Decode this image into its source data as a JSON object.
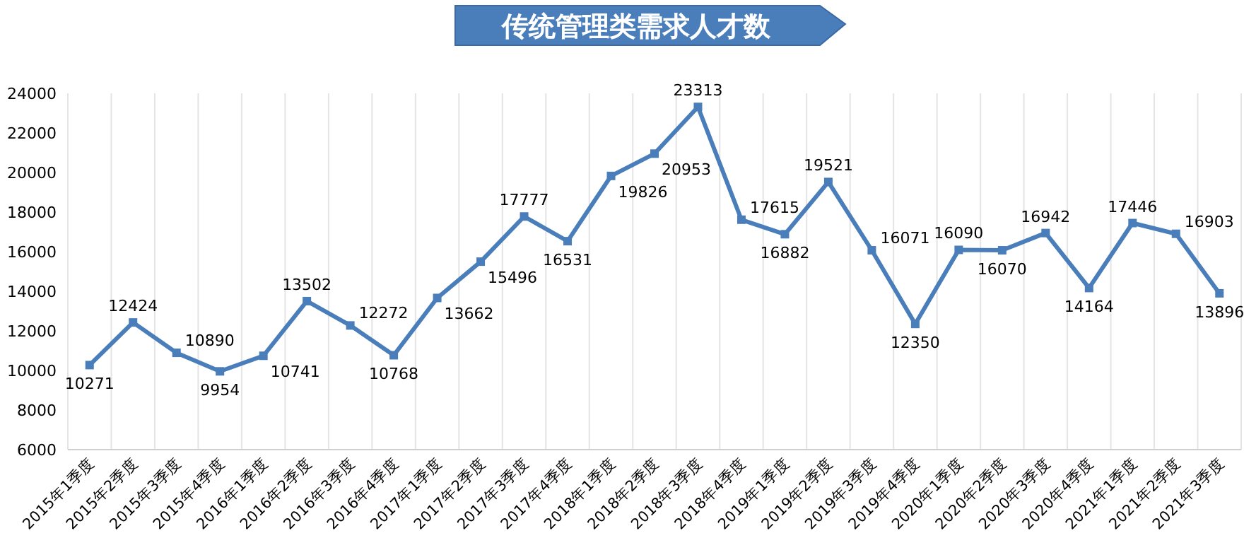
{
  "chart_data": {
    "type": "line",
    "title": "传统管理类需求人才数",
    "categories": [
      "2015年1季度",
      "2015年2季度",
      "2015年3季度",
      "2015年4季度",
      "2016年1季度",
      "2016年2季度",
      "2016年3季度",
      "2016年4季度",
      "2017年1季度",
      "2017年2季度",
      "2017年3季度",
      "2017年4季度",
      "2018年1季度",
      "2018年2季度",
      "2018年3季度",
      "2018年4季度",
      "2019年1季度",
      "2019年2季度",
      "2019年3季度",
      "2019年4季度",
      "2020年1季度",
      "2020年2季度",
      "2020年3季度",
      "2020年4季度",
      "2021年1季度",
      "2021年2季度",
      "2021年3季度"
    ],
    "series": [
      {
        "color": "#4a7ebb",
        "values": [
          10271,
          12424,
          10890,
          9954,
          10741,
          13502,
          12272,
          10768,
          13662,
          15496,
          17777,
          16531,
          19826,
          20953,
          23313,
          17615,
          16882,
          19521,
          16071,
          12350,
          16090,
          16070,
          16942,
          14164,
          17446,
          16903,
          13896
        ]
      }
    ],
    "ylim": [
      6000,
      24000
    ],
    "yticks": [
      6000,
      8000,
      10000,
      12000,
      14000,
      16000,
      18000,
      20000,
      22000,
      24000
    ],
    "grid": "x",
    "marker": "square",
    "data_labels": true
  }
}
